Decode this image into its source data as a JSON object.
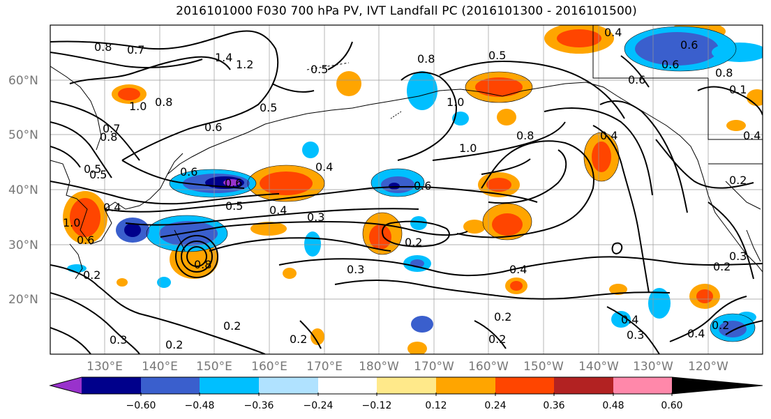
{
  "title": "2016101000 F030 700 hPa PV, IVT Landfall PC (2016101300 - 2016101500)",
  "lat_labels": [
    "60°N",
    "50°N",
    "40°N",
    "30°N",
    "20°N"
  ],
  "lon_labels": [
    "130°E",
    "140°E",
    "150°E",
    "160°E",
    "170°E",
    "180°W",
    "170°W",
    "160°W",
    "150°W",
    "140°W",
    "130°W",
    "120°W"
  ],
  "colorbar": {
    "ticks": [
      "−0.60",
      "−0.48",
      "−0.36",
      "−0.24",
      "−0.12",
      "0.12",
      "0.24",
      "0.36",
      "0.48",
      "0.60"
    ],
    "colors": [
      "#9932cc",
      "#00008b",
      "#3a5fcd",
      "#00bfff",
      "#b0e2ff",
      "#ffffff",
      "#ffe98a",
      "#ffa500",
      "#ff4500",
      "#b22222",
      "#ff88aa"
    ]
  },
  "contour_labels": [
    "0.8",
    "0.7",
    "1.4",
    "1.2",
    "0.5",
    "0.8",
    "0.5",
    "0.4",
    "0.5",
    "0.6",
    "0.8",
    "1.0",
    "0.8",
    "0.6",
    "0.7",
    "0.5",
    "1.0",
    "0.8",
    "1.0",
    "0.6",
    "0.4",
    "0.6",
    "0.4",
    "0.5",
    "0.4",
    "0.3",
    "0.2",
    "0.6",
    "0.8",
    "0.4",
    "0.2",
    "0.3",
    "0.4",
    "0.2",
    "0.2",
    "0.2",
    "0.3",
    "0.2",
    "0.2",
    "0.2",
    "0.4",
    "0.3",
    "0.4",
    "0.2",
    "0.2",
    "0.3",
    "1.0",
    "0.1",
    "0.6",
    "0.4",
    "0.6",
    "0.8",
    "0.5",
    "0.6"
  ]
}
